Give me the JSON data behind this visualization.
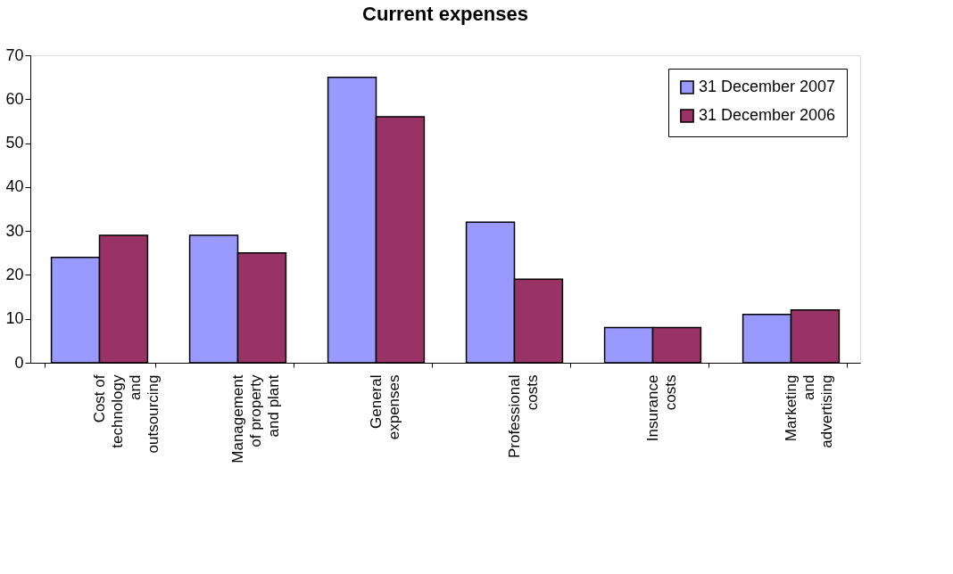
{
  "chart_data": {
    "type": "bar",
    "title": "Current expenses",
    "categories": [
      "Cost of\ntechnology\nand\noutsourcing",
      "Management\nof property\nand plant",
      "General\nexpenses",
      "Professional\ncosts",
      "Insurance\ncosts",
      "Marketing\nand\nadvertising"
    ],
    "series": [
      {
        "name": "31 December 2007",
        "color": "#9999ff",
        "values": [
          24,
          29,
          65,
          32,
          8,
          11
        ]
      },
      {
        "name": "31 December 2006",
        "color": "#993366",
        "values": [
          29,
          25,
          56,
          19,
          8,
          12
        ]
      }
    ],
    "ylim": [
      0,
      70
    ],
    "yticks": [
      0,
      10,
      20,
      30,
      40,
      50,
      60,
      70
    ],
    "grid": false,
    "legend": "top right"
  }
}
